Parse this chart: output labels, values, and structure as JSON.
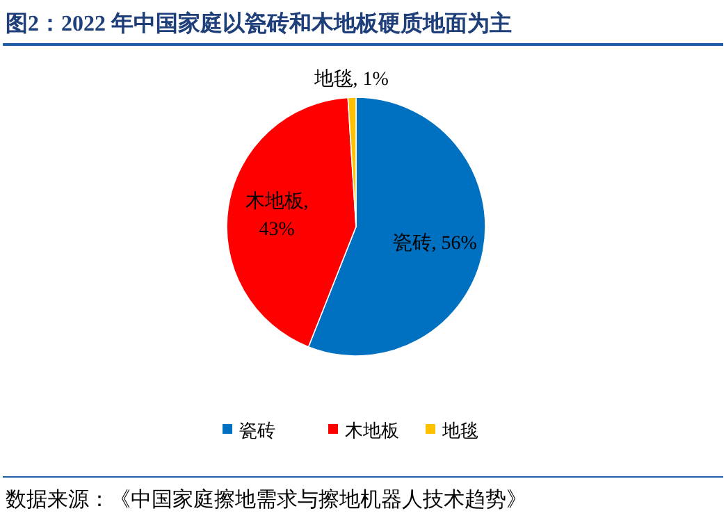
{
  "chart_data": {
    "type": "pie",
    "title": "图2：2022 年中国家庭以瓷砖和木地板硬质地面为主",
    "categories": [
      "瓷砖",
      "木地板",
      "地毯"
    ],
    "values": [
      56,
      43,
      1
    ],
    "colors": [
      "#0070c0",
      "#ff0000",
      "#ffc000"
    ],
    "value_labels": [
      "瓷砖, 56%",
      "木地板, 43%",
      "地毯, 1%"
    ],
    "legend": "bottom",
    "annotations": [
      "数据来源：《中国家庭擦地需求与擦地机器人技术趋势》"
    ]
  }
}
